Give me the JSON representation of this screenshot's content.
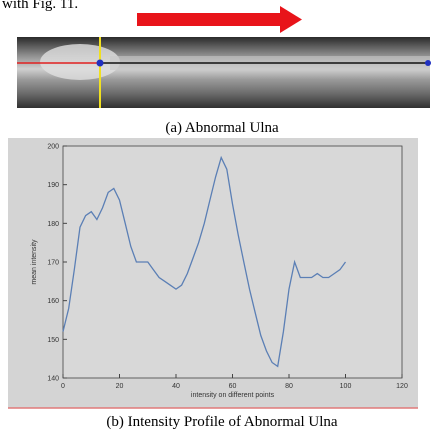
{
  "text_top": "with Fig. 11.",
  "caption_a": "(a) Abnormal Ulna",
  "caption_b": "(b) Intensity Profile of Abnormal Ulna",
  "chart_data": {
    "type": "line",
    "xlabel": "intensity on different points",
    "ylabel": "mean intensity",
    "x": [
      0,
      2,
      4,
      6,
      8,
      10,
      12,
      14,
      16,
      18,
      20,
      22,
      24,
      26,
      28,
      30,
      32,
      34,
      36,
      38,
      40,
      42,
      44,
      46,
      48,
      50,
      52,
      54,
      56,
      58,
      60,
      62,
      64,
      66,
      68,
      70,
      72,
      74,
      76,
      78,
      80,
      82,
      84,
      86,
      88,
      90,
      92,
      94,
      96,
      98,
      100
    ],
    "series": [
      {
        "name": "mean intensity",
        "color": "#5b7fb5",
        "values": [
          152,
          158,
          168,
          179,
          182,
          183,
          181,
          184,
          188,
          189,
          186,
          180,
          174,
          170,
          170,
          170,
          168,
          166,
          165,
          164,
          163,
          164,
          167,
          171,
          175,
          180,
          186,
          192,
          197,
          194,
          185,
          177,
          170,
          163,
          157,
          151,
          147,
          144,
          143,
          152,
          163,
          170,
          166,
          166,
          166,
          167,
          166,
          166,
          167,
          168,
          170
        ]
      }
    ],
    "xlim": [
      0,
      120
    ],
    "xticks": [
      0,
      20,
      40,
      60,
      80,
      100,
      120
    ],
    "ylim": [
      140,
      200
    ],
    "yticks": [
      140,
      150,
      160,
      170,
      180,
      190,
      200
    ]
  }
}
